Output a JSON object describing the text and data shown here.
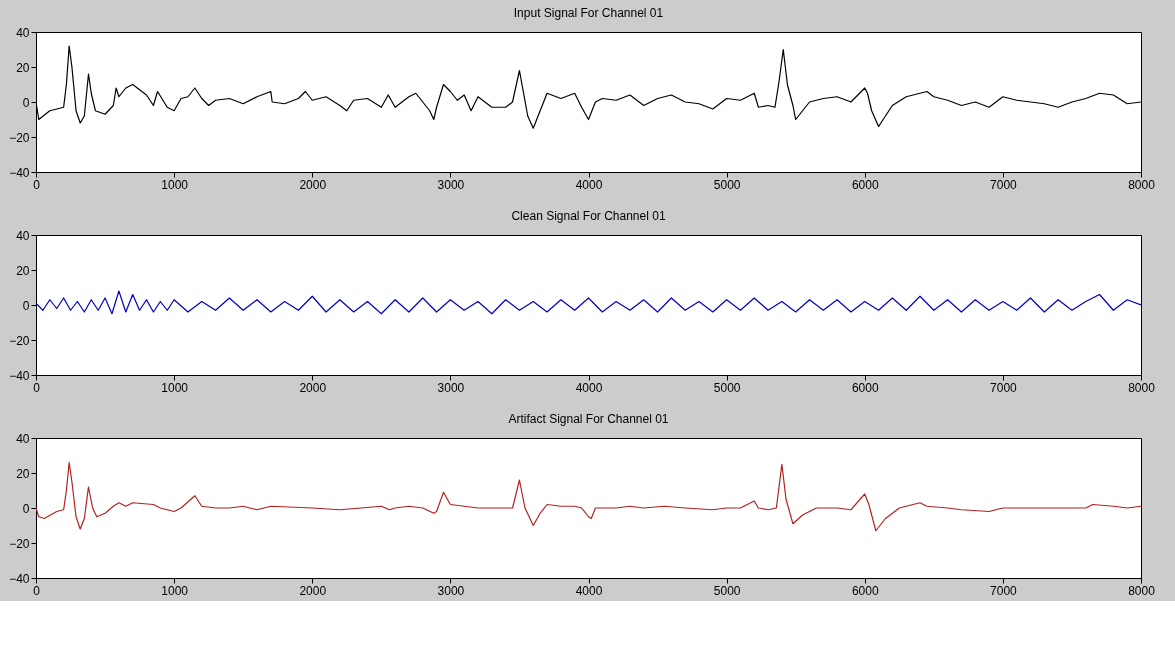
{
  "chart_data": [
    {
      "type": "line",
      "title": "Input Signal For Channel 01",
      "xlim": [
        0,
        8000
      ],
      "xticks": [
        0,
        1000,
        2000,
        3000,
        4000,
        5000,
        6000,
        7000,
        8000
      ],
      "ylim": [
        -40,
        40
      ],
      "yticks": [
        -40,
        -20,
        0,
        20,
        40
      ],
      "series": [
        {
          "color": "#000000",
          "x": [
            0,
            20,
            100,
            200,
            220,
            240,
            260,
            290,
            320,
            350,
            380,
            400,
            430,
            500,
            560,
            580,
            600,
            650,
            700,
            800,
            850,
            880,
            950,
            1000,
            1050,
            1100,
            1150,
            1200,
            1250,
            1300,
            1400,
            1500,
            1600,
            1700,
            1710,
            1800,
            1900,
            1950,
            2000,
            2100,
            2200,
            2250,
            2300,
            2400,
            2500,
            2550,
            2600,
            2700,
            2750,
            2800,
            2850,
            2880,
            2900,
            2950,
            3000,
            3050,
            3100,
            3150,
            3200,
            3250,
            3300,
            3400,
            3450,
            3500,
            3530,
            3560,
            3600,
            3650,
            3700,
            3800,
            3900,
            3950,
            4000,
            4050,
            4100,
            4200,
            4300,
            4400,
            4500,
            4600,
            4700,
            4800,
            4900,
            5000,
            5100,
            5200,
            5230,
            5300,
            5350,
            5380,
            5410,
            5440,
            5480,
            5500,
            5600,
            5700,
            5800,
            5900,
            6000,
            6020,
            6050,
            6100,
            6150,
            6200,
            6300,
            6400,
            6450,
            6500,
            6600,
            6700,
            6800,
            6900,
            7000,
            7100,
            7200,
            7300,
            7400,
            7500,
            7600,
            7700,
            7800,
            7900,
            8000
          ],
          "values": [
            0,
            -10,
            -5,
            -3,
            10,
            32,
            20,
            -5,
            -12,
            -8,
            16,
            5,
            -5,
            -7,
            -2,
            8,
            3,
            8,
            10,
            4,
            -2,
            6,
            -3,
            -5,
            2,
            3,
            8,
            2,
            -2,
            1,
            2,
            -1,
            3,
            6,
            0,
            -1,
            2,
            6,
            1,
            3,
            -2,
            -5,
            1,
            2,
            -3,
            4,
            -3,
            3,
            5,
            0,
            -5,
            -10,
            -3,
            10,
            6,
            1,
            4,
            -5,
            3,
            0,
            -3,
            -3,
            0,
            18,
            5,
            -8,
            -15,
            -5,
            5,
            2,
            5,
            -3,
            -10,
            0,
            2,
            1,
            4,
            -2,
            2,
            4,
            0,
            -1,
            -4,
            2,
            1,
            5,
            -3,
            -2,
            -3,
            12,
            30,
            10,
            -2,
            -10,
            0,
            2,
            3,
            0,
            8,
            5,
            -5,
            -14,
            -8,
            -2,
            3,
            5,
            6,
            3,
            1,
            -2,
            0,
            -3,
            3,
            1,
            0,
            -1,
            -3,
            0,
            2,
            5,
            4,
            -1,
            0
          ]
        }
      ]
    },
    {
      "type": "line",
      "title": "Clean Signal For Channel 01",
      "xlim": [
        0,
        8000
      ],
      "xticks": [
        0,
        1000,
        2000,
        3000,
        4000,
        5000,
        6000,
        7000,
        8000
      ],
      "ylim": [
        -40,
        40
      ],
      "yticks": [
        -40,
        -20,
        0,
        20,
        40
      ],
      "series": [
        {
          "color": "#0000c0",
          "x": [
            0,
            50,
            100,
            150,
            200,
            250,
            300,
            350,
            400,
            450,
            500,
            550,
            600,
            650,
            700,
            750,
            800,
            850,
            900,
            950,
            1000,
            1100,
            1200,
            1300,
            1400,
            1500,
            1600,
            1700,
            1800,
            1900,
            2000,
            2100,
            2200,
            2300,
            2400,
            2500,
            2600,
            2700,
            2800,
            2900,
            3000,
            3100,
            3200,
            3300,
            3400,
            3500,
            3600,
            3700,
            3800,
            3900,
            4000,
            4100,
            4200,
            4300,
            4400,
            4500,
            4600,
            4700,
            4800,
            4900,
            5000,
            5100,
            5200,
            5300,
            5400,
            5500,
            5600,
            5700,
            5800,
            5900,
            6000,
            6100,
            6200,
            6300,
            6400,
            6500,
            6600,
            6700,
            6800,
            6900,
            7000,
            7100,
            7200,
            7300,
            7400,
            7500,
            7600,
            7700,
            7800,
            7900,
            8000
          ],
          "values": [
            1,
            -3,
            3,
            -2,
            4,
            -3,
            2,
            -4,
            3,
            -3,
            4,
            -5,
            8,
            -4,
            6,
            -3,
            3,
            -4,
            2,
            -3,
            3,
            -4,
            2,
            -3,
            4,
            -3,
            3,
            -4,
            2,
            -3,
            5,
            -4,
            3,
            -4,
            2,
            -5,
            3,
            -4,
            4,
            -4,
            3,
            -3,
            2,
            -5,
            3,
            -3,
            2,
            -4,
            3,
            -3,
            4,
            -4,
            2,
            -3,
            3,
            -4,
            4,
            -3,
            2,
            -4,
            3,
            -3,
            4,
            -3,
            2,
            -4,
            3,
            -3,
            3,
            -4,
            2,
            -3,
            4,
            -3,
            5,
            -3,
            3,
            -4,
            3,
            -3,
            2,
            -3,
            4,
            -4,
            3,
            -3,
            2,
            6,
            -3,
            3,
            0
          ]
        }
      ]
    },
    {
      "type": "line",
      "title": "Artifact Signal For Channel 01",
      "xlim": [
        0,
        8000
      ],
      "xticks": [
        0,
        1000,
        2000,
        3000,
        4000,
        5000,
        6000,
        7000,
        8000
      ],
      "ylim": [
        -40,
        40
      ],
      "yticks": [
        -40,
        -20,
        0,
        20,
        40
      ],
      "series": [
        {
          "color": "#b22222",
          "x": [
            0,
            20,
            60,
            150,
            200,
            220,
            240,
            260,
            290,
            320,
            350,
            380,
            410,
            440,
            500,
            560,
            600,
            650,
            700,
            850,
            900,
            1000,
            1050,
            1150,
            1200,
            1300,
            1400,
            1500,
            1600,
            1700,
            2000,
            2200,
            2500,
            2560,
            2600,
            2700,
            2800,
            2880,
            2900,
            2950,
            3000,
            3100,
            3200,
            3300,
            3450,
            3500,
            3540,
            3600,
            3650,
            3700,
            3800,
            3900,
            3950,
            4000,
            4020,
            4050,
            4200,
            4300,
            4400,
            4550,
            4700,
            4900,
            5000,
            5100,
            5200,
            5230,
            5300,
            5360,
            5400,
            5430,
            5480,
            5550,
            5650,
            5800,
            5900,
            6000,
            6030,
            6080,
            6150,
            6250,
            6300,
            6400,
            6450,
            6600,
            6700,
            6900,
            7000,
            7200,
            7400,
            7600,
            7650,
            7800,
            7900,
            8000
          ],
          "values": [
            0,
            -5,
            -6,
            -2,
            -1,
            10,
            26,
            15,
            -5,
            -12,
            -6,
            12,
            0,
            -5,
            -3,
            1,
            3,
            1,
            3,
            2,
            0,
            -2,
            0,
            7,
            1,
            0,
            0,
            1,
            -1,
            1,
            0,
            -1,
            1,
            -1,
            0,
            1,
            0,
            -3,
            -2,
            9,
            2,
            1,
            0,
            0,
            0,
            16,
            0,
            -10,
            -3,
            2,
            1,
            1,
            0,
            -5,
            -6,
            0,
            0,
            1,
            0,
            1,
            0,
            -1,
            0,
            0,
            4,
            0,
            -1,
            0,
            25,
            5,
            -9,
            -4,
            0,
            0,
            -1,
            8,
            2,
            -13,
            -6,
            0,
            1,
            3,
            1,
            0,
            -1,
            -2,
            0,
            0,
            0,
            0,
            2,
            1,
            0,
            1
          ]
        }
      ]
    }
  ]
}
